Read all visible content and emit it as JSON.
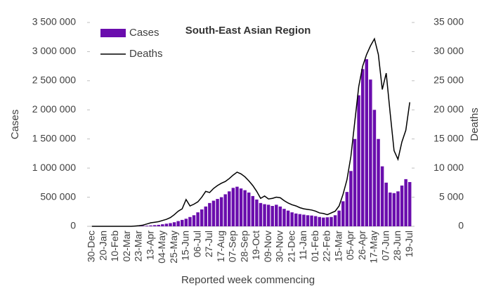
{
  "chart_data": {
    "type": "bar",
    "title": "South-East Asian Region",
    "x_label": "Reported week commencing",
    "y_label": "Cases",
    "y2_label": "Deaths",
    "categories": [
      "30-Dec",
      null,
      null,
      "20-Jan",
      null,
      null,
      "10-Feb",
      null,
      null,
      "02-Mar",
      null,
      null,
      "23-Mar",
      null,
      null,
      "13-Apr",
      null,
      null,
      "04-May",
      null,
      null,
      "25-May",
      null,
      null,
      "15-Jun",
      null,
      null,
      "06-Jul",
      null,
      null,
      "27-Jul",
      null,
      null,
      "17-Aug",
      null,
      null,
      "07-Sep",
      null,
      null,
      "28-Sep",
      null,
      null,
      "19-Oct",
      null,
      null,
      "09-Nov",
      null,
      null,
      "30-Nov",
      null,
      null,
      "21-Dec",
      null,
      null,
      "11-Jan",
      null,
      null,
      "01-Feb",
      null,
      null,
      "22-Feb",
      null,
      null,
      "15-Mar",
      null,
      null,
      "05-Apr",
      null,
      null,
      "26-Apr",
      null,
      null,
      "17-May",
      null,
      null,
      "07-Jun",
      null,
      null,
      "28-Jun",
      null,
      null,
      "19-Jul"
    ],
    "series": [
      {
        "name": "Cases",
        "type": "bar",
        "color": "#6a0dad",
        "values": [
          0,
          0,
          0,
          0,
          0,
          0,
          0,
          0,
          0,
          0,
          1000,
          2000,
          5000,
          8000,
          10000,
          15000,
          20000,
          25000,
          35000,
          45000,
          55000,
          70000,
          90000,
          110000,
          130000,
          160000,
          190000,
          240000,
          290000,
          340000,
          400000,
          440000,
          470000,
          500000,
          550000,
          600000,
          660000,
          680000,
          650000,
          620000,
          580000,
          520000,
          460000,
          400000,
          380000,
          370000,
          350000,
          370000,
          340000,
          300000,
          270000,
          240000,
          220000,
          210000,
          200000,
          190000,
          185000,
          175000,
          160000,
          150000,
          155000,
          160000,
          190000,
          270000,
          430000,
          590000,
          950000,
          1500000,
          2250000,
          2700000,
          2870000,
          2520000,
          2000000,
          1500000,
          1030000,
          750000,
          580000,
          570000,
          600000,
          700000,
          810000,
          760000
        ]
      },
      {
        "name": "Deaths",
        "type": "line",
        "color": "#000000",
        "axis": "y2",
        "values": [
          0,
          0,
          0,
          0,
          0,
          0,
          0,
          0,
          0,
          0,
          0,
          50,
          100,
          200,
          400,
          600,
          700,
          800,
          1000,
          1200,
          1500,
          2000,
          2600,
          3000,
          4600,
          3500,
          3800,
          4200,
          5000,
          6000,
          5800,
          6500,
          7000,
          7400,
          7700,
          8200,
          8800,
          9300,
          9000,
          8500,
          7800,
          7000,
          6000,
          4800,
          5200,
          4700,
          4800,
          5000,
          4900,
          4400,
          4000,
          3700,
          3500,
          3200,
          3000,
          2900,
          2800,
          2600,
          2300,
          2200,
          2000,
          2300,
          2600,
          3500,
          5500,
          8000,
          12000,
          18000,
          24000,
          27500,
          29500,
          31000,
          32200,
          29500,
          23500,
          26300,
          19500,
          13000,
          11500,
          14500,
          16500,
          21300
        ]
      }
    ],
    "ylim": [
      0,
      3500000
    ],
    "yticks": [
      0,
      {
        "value": 500000,
        "label": "500 000"
      },
      {
        "value": 1000000,
        "label": "1 000 000"
      },
      {
        "value": 1500000,
        "label": "1 500 000"
      },
      {
        "value": 2000000,
        "label": "2 000 000"
      },
      {
        "value": 2500000,
        "label": "2 500 000"
      },
      {
        "value": 3000000,
        "label": "3 000 000"
      },
      {
        "value": 3500000,
        "label": "3 500 000"
      }
    ],
    "y2lim": [
      0,
      35000
    ],
    "y2ticks": [
      0,
      {
        "value": 5000,
        "label": "5 000"
      },
      {
        "value": 10000,
        "label": "10 000"
      },
      {
        "value": 15000,
        "label": "15 000"
      },
      {
        "value": 20000,
        "label": "20 000"
      },
      {
        "value": 25000,
        "label": "25 000"
      },
      {
        "value": 30000,
        "label": "30 000"
      },
      {
        "value": 35000,
        "label": "35 000"
      }
    ],
    "legend": "top-left",
    "grid": false
  }
}
